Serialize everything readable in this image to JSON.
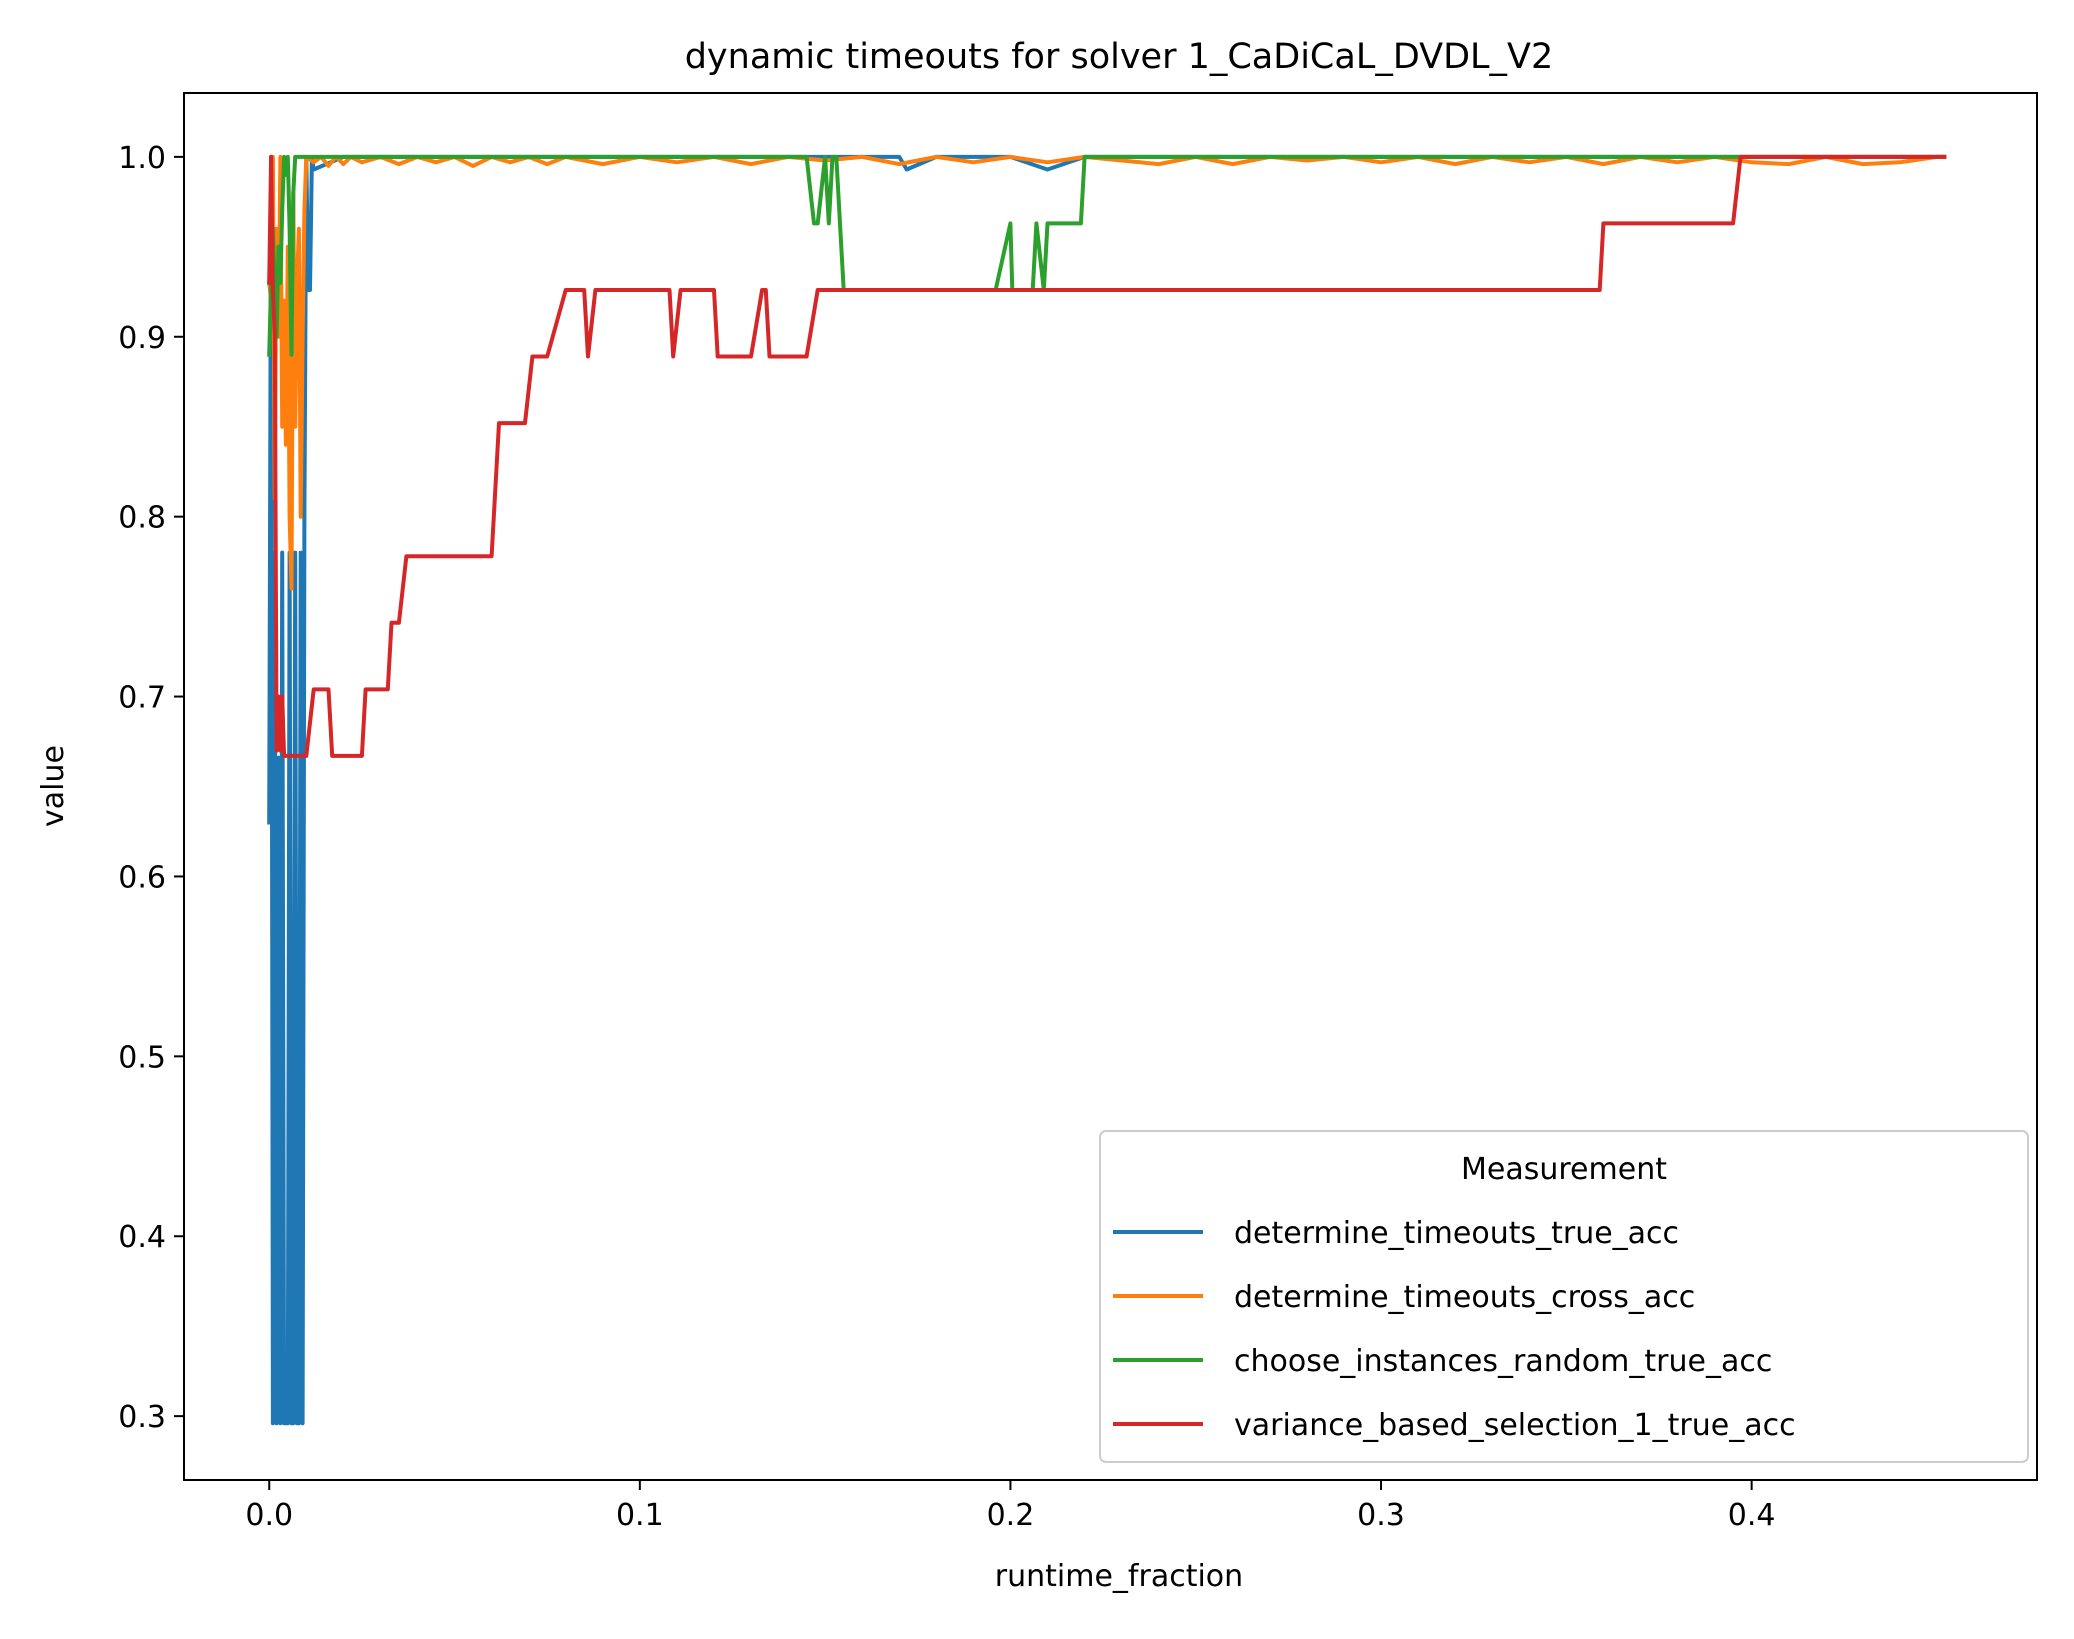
{
  "chart_data": {
    "type": "line",
    "title": "dynamic timeouts for solver 1_CaDiCaL_DVDL_V2",
    "xlabel": "runtime_fraction",
    "ylabel": "value",
    "xlim": [
      -0.023,
      0.477
    ],
    "ylim": [
      0.2645,
      1.0355
    ],
    "xticks": [
      0.0,
      0.1,
      0.2,
      0.3,
      0.4
    ],
    "xtick_labels": [
      "0.0",
      "0.1",
      "0.2",
      "0.3",
      "0.4"
    ],
    "yticks": [
      0.3,
      0.4,
      0.5,
      0.6,
      0.7,
      0.8,
      0.9,
      1.0
    ],
    "ytick_labels": [
      "0.3",
      "0.4",
      "0.5",
      "0.6",
      "0.7",
      "0.8",
      "0.9",
      "1.0"
    ],
    "grid": false,
    "legend": {
      "title": "Measurement",
      "placement": "lower right"
    },
    "series": [
      {
        "name": "determine_timeouts_true_acc",
        "color": "#1f77b4",
        "x": [
          0.0,
          0.0005,
          0.001,
          0.0015,
          0.002,
          0.0025,
          0.003,
          0.0035,
          0.004,
          0.0045,
          0.005,
          0.0055,
          0.006,
          0.0065,
          0.007,
          0.0075,
          0.008,
          0.0085,
          0.009,
          0.0095,
          0.01,
          0.0105,
          0.011,
          0.0115,
          0.012,
          0.02,
          0.05,
          0.1,
          0.15,
          0.17,
          0.172,
          0.18,
          0.2,
          0.21,
          0.22,
          0.3,
          0.4,
          0.452
        ],
        "y": [
          0.63,
          1.0,
          0.296,
          0.78,
          0.296,
          0.666,
          0.296,
          0.78,
          0.296,
          0.296,
          0.296,
          0.78,
          0.296,
          0.296,
          0.78,
          0.296,
          0.296,
          0.78,
          0.296,
          0.8,
          1.0,
          0.926,
          0.926,
          1.0,
          0.993,
          1.0,
          1.0,
          1.0,
          1.0,
          1.0,
          0.993,
          1.0,
          1.0,
          0.993,
          1.0,
          1.0,
          1.0,
          1.0
        ]
      },
      {
        "name": "determine_timeouts_cross_acc",
        "color": "#ff7f0e",
        "x": [
          0.0,
          0.0005,
          0.001,
          0.0015,
          0.002,
          0.0025,
          0.003,
          0.0035,
          0.004,
          0.0045,
          0.005,
          0.0055,
          0.006,
          0.0065,
          0.007,
          0.0075,
          0.008,
          0.0085,
          0.009,
          0.0095,
          0.01,
          0.012,
          0.014,
          0.016,
          0.018,
          0.02,
          0.022,
          0.025,
          0.03,
          0.035,
          0.04,
          0.045,
          0.05,
          0.055,
          0.06,
          0.065,
          0.07,
          0.075,
          0.08,
          0.09,
          0.1,
          0.11,
          0.12,
          0.13,
          0.14,
          0.15,
          0.16,
          0.17,
          0.18,
          0.19,
          0.2,
          0.21,
          0.22,
          0.23,
          0.24,
          0.25,
          0.26,
          0.27,
          0.28,
          0.29,
          0.3,
          0.31,
          0.32,
          0.33,
          0.34,
          0.35,
          0.36,
          0.37,
          0.38,
          0.39,
          0.4,
          0.41,
          0.42,
          0.43,
          0.44,
          0.45,
          0.452
        ],
        "y": [
          0.93,
          0.92,
          1.0,
          0.81,
          0.96,
          0.9,
          1.0,
          0.85,
          0.92,
          0.84,
          0.95,
          0.8,
          0.76,
          0.98,
          0.85,
          0.93,
          0.96,
          0.8,
          0.9,
          0.97,
          1.0,
          0.997,
          1.0,
          0.995,
          1.0,
          0.996,
          1.0,
          0.997,
          1.0,
          0.996,
          1.0,
          0.997,
          1.0,
          0.995,
          1.0,
          0.997,
          1.0,
          0.996,
          1.0,
          0.996,
          1.0,
          0.997,
          1.0,
          0.996,
          1.0,
          0.998,
          1.0,
          0.996,
          1.0,
          0.997,
          1.0,
          0.997,
          1.0,
          0.998,
          0.996,
          1.0,
          0.996,
          1.0,
          0.998,
          1.0,
          0.997,
          1.0,
          0.996,
          1.0,
          0.997,
          1.0,
          0.996,
          1.0,
          0.997,
          1.0,
          0.997,
          0.996,
          1.0,
          0.996,
          0.997,
          1.0,
          1.0
        ]
      },
      {
        "name": "choose_instances_random_true_acc",
        "color": "#2ca02c",
        "x": [
          0.0,
          0.0005,
          0.001,
          0.0015,
          0.002,
          0.0025,
          0.003,
          0.0035,
          0.004,
          0.0045,
          0.005,
          0.0055,
          0.006,
          0.0065,
          0.007,
          0.01,
          0.05,
          0.1,
          0.145,
          0.147,
          0.148,
          0.15,
          0.151,
          0.152,
          0.153,
          0.155,
          0.156,
          0.16,
          0.17,
          0.18,
          0.19,
          0.196,
          0.2,
          0.2005,
          0.202,
          0.206,
          0.207,
          0.209,
          0.21,
          0.212,
          0.216,
          0.218,
          0.219,
          0.22,
          0.23,
          0.3,
          0.4,
          0.452
        ],
        "y": [
          0.89,
          0.93,
          0.96,
          0.926,
          0.9,
          0.95,
          0.93,
          0.97,
          1.0,
          0.99,
          1.0,
          0.96,
          0.89,
          0.98,
          1.0,
          1.0,
          1.0,
          1.0,
          1.0,
          0.963,
          0.963,
          1.0,
          0.963,
          1.0,
          1.0,
          0.926,
          0.926,
          0.926,
          0.926,
          0.926,
          0.926,
          0.926,
          0.963,
          0.926,
          0.926,
          0.926,
          0.963,
          0.926,
          0.963,
          0.963,
          0.963,
          0.963,
          0.963,
          1.0,
          1.0,
          1.0,
          1.0,
          1.0
        ]
      },
      {
        "name": "variance_based_selection_1_true_acc",
        "color": "#d62728",
        "x": [
          0.0,
          0.0005,
          0.001,
          0.0015,
          0.002,
          0.0025,
          0.003,
          0.0035,
          0.004,
          0.0045,
          0.005,
          0.01,
          0.012,
          0.013,
          0.016,
          0.017,
          0.025,
          0.026,
          0.028,
          0.032,
          0.033,
          0.034,
          0.035,
          0.037,
          0.06,
          0.062,
          0.063,
          0.065,
          0.066,
          0.069,
          0.071,
          0.072,
          0.075,
          0.08,
          0.081,
          0.085,
          0.086,
          0.088,
          0.09,
          0.108,
          0.109,
          0.111,
          0.12,
          0.121,
          0.13,
          0.133,
          0.134,
          0.135,
          0.145,
          0.148,
          0.17,
          0.2,
          0.25,
          0.3,
          0.35,
          0.359,
          0.36,
          0.37,
          0.38,
          0.39,
          0.395,
          0.397,
          0.41,
          0.43,
          0.452
        ],
        "y": [
          0.93,
          1.0,
          0.926,
          0.9,
          0.67,
          0.7,
          0.67,
          0.7,
          0.667,
          0.667,
          0.667,
          0.667,
          0.704,
          0.704,
          0.704,
          0.667,
          0.667,
          0.704,
          0.704,
          0.704,
          0.741,
          0.741,
          0.741,
          0.778,
          0.778,
          0.852,
          0.852,
          0.852,
          0.852,
          0.852,
          0.889,
          0.889,
          0.889,
          0.926,
          0.926,
          0.926,
          0.889,
          0.926,
          0.926,
          0.926,
          0.889,
          0.926,
          0.926,
          0.889,
          0.889,
          0.926,
          0.926,
          0.889,
          0.889,
          0.926,
          0.926,
          0.926,
          0.926,
          0.926,
          0.926,
          0.926,
          0.963,
          0.963,
          0.963,
          0.963,
          0.963,
          1.0,
          1.0,
          1.0,
          1.0
        ]
      }
    ]
  }
}
